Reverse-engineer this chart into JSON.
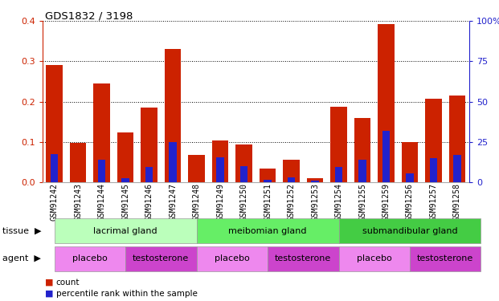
{
  "title": "GDS1832 / 3198",
  "samples": [
    "GSM91242",
    "GSM91243",
    "GSM91244",
    "GSM91245",
    "GSM91246",
    "GSM91247",
    "GSM91248",
    "GSM91249",
    "GSM91250",
    "GSM91251",
    "GSM91252",
    "GSM91253",
    "GSM91254",
    "GSM91255",
    "GSM91259",
    "GSM91256",
    "GSM91257",
    "GSM91258"
  ],
  "count_values": [
    0.29,
    0.097,
    0.244,
    0.124,
    0.186,
    0.33,
    0.068,
    0.104,
    0.093,
    0.034,
    0.055,
    0.01,
    0.188,
    0.16,
    0.392,
    0.099,
    0.207,
    0.215
  ],
  "percentile_values": [
    0.07,
    0.0,
    0.055,
    0.01,
    0.037,
    0.1,
    0.0,
    0.062,
    0.04,
    0.005,
    0.012,
    0.003,
    0.038,
    0.055,
    0.128,
    0.022,
    0.06,
    0.068
  ],
  "bar_color": "#cc2200",
  "percentile_color": "#2222cc",
  "ylim": [
    0,
    0.4
  ],
  "y2lim": [
    0,
    100
  ],
  "yticks": [
    0,
    0.1,
    0.2,
    0.3,
    0.4
  ],
  "y2ticks": [
    0,
    25,
    50,
    75,
    100
  ],
  "tissue_groups": [
    {
      "label": "lacrimal gland",
      "start": 0,
      "end": 6,
      "color": "#bbffbb"
    },
    {
      "label": "meibomian gland",
      "start": 6,
      "end": 12,
      "color": "#66ee66"
    },
    {
      "label": "submandibular gland",
      "start": 12,
      "end": 18,
      "color": "#44cc44"
    }
  ],
  "agent_groups": [
    {
      "label": "placebo",
      "start": 0,
      "end": 3,
      "color": "#ee88ee"
    },
    {
      "label": "testosterone",
      "start": 3,
      "end": 6,
      "color": "#cc44cc"
    },
    {
      "label": "placebo",
      "start": 6,
      "end": 9,
      "color": "#ee88ee"
    },
    {
      "label": "testosterone",
      "start": 9,
      "end": 12,
      "color": "#cc44cc"
    },
    {
      "label": "placebo",
      "start": 12,
      "end": 15,
      "color": "#ee88ee"
    },
    {
      "label": "testosterone",
      "start": 15,
      "end": 18,
      "color": "#cc44cc"
    }
  ],
  "legend_count_color": "#cc2200",
  "legend_percentile_color": "#2222cc",
  "background_color": "#ffffff",
  "bar_width": 0.7
}
